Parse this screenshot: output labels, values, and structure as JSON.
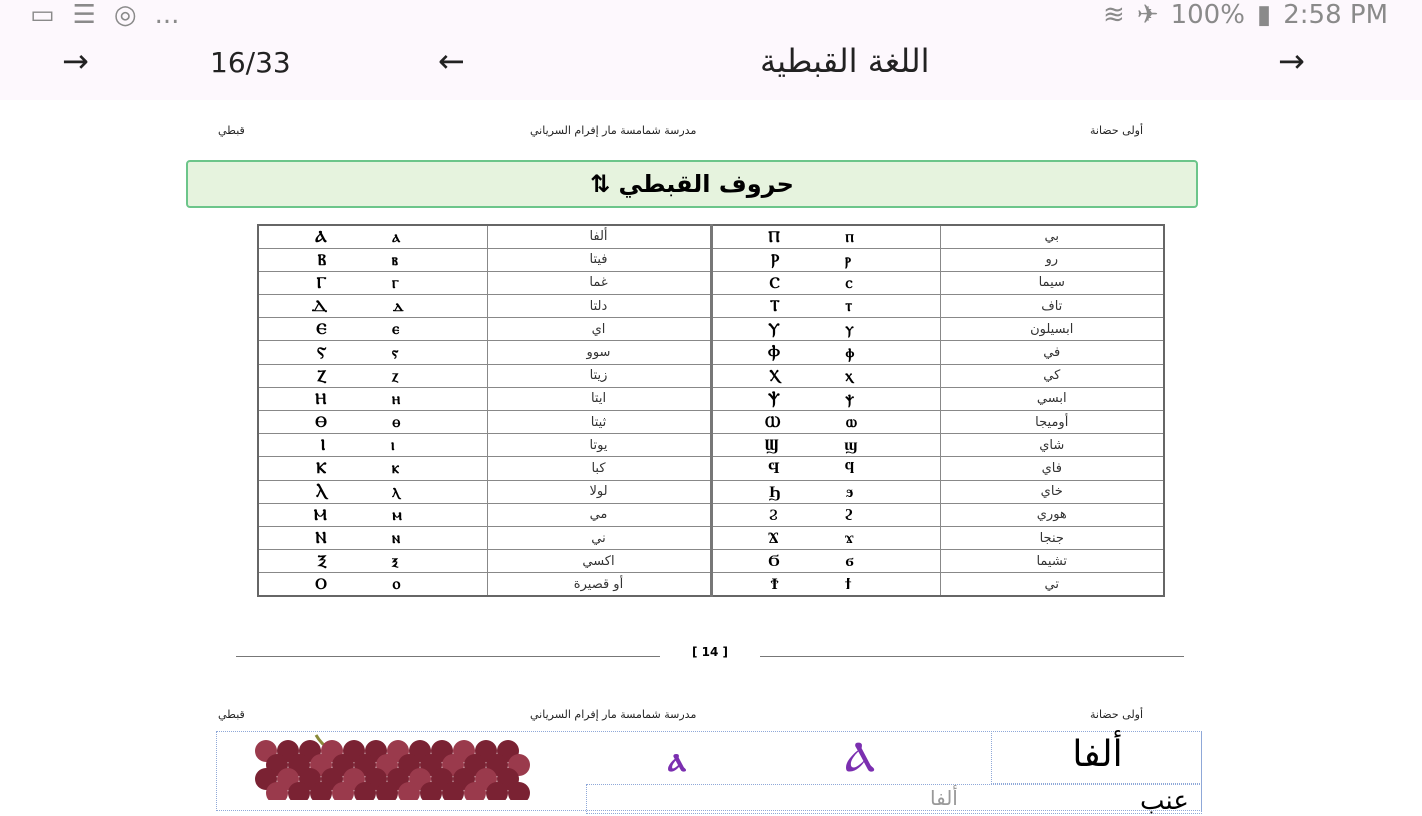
{
  "status_bar": {
    "left_icons": [
      "image-icon",
      "list-icon",
      "sync-icon",
      "more-dots-icon"
    ],
    "more": "...",
    "battery": "100%",
    "time": "2:58 PM"
  },
  "app_bar": {
    "title": "اللغة القبطية",
    "page_indicator": "16/33"
  },
  "page_header": {
    "right": "أولى حضانة",
    "center": "مدرسة شمامسة مار إفرام السرياني",
    "left": "قبطي"
  },
  "section_title": "حروف القبطي",
  "table": {
    "left": [
      {
        "glyphs": "Ⲁ ⲁ",
        "name": "ألفا"
      },
      {
        "glyphs": "Ⲃ ⲃ",
        "name": "فيتا"
      },
      {
        "glyphs": "Ⲅ ⲅ",
        "name": "غما"
      },
      {
        "glyphs": "Ⲇ ⲇ",
        "name": "دلتا"
      },
      {
        "glyphs": "Ⲉ ⲉ",
        "name": "اي"
      },
      {
        "glyphs": "Ⲋ ⲋ",
        "name": "سوو"
      },
      {
        "glyphs": "Ⲍ ⲍ",
        "name": "زيتا"
      },
      {
        "glyphs": "Ⲏ ⲏ",
        "name": "ايتا"
      },
      {
        "glyphs": "Ⲑ ⲑ",
        "name": "ثيتا"
      },
      {
        "glyphs": "Ⲓ ⲓ",
        "name": "يوتا"
      },
      {
        "glyphs": "Ⲕ ⲕ",
        "name": "كبا"
      },
      {
        "glyphs": "Ⲗ ⲗ",
        "name": "لولا"
      },
      {
        "glyphs": "Ⲙ ⲙ",
        "name": "مي"
      },
      {
        "glyphs": "Ⲛ ⲛ",
        "name": "ني"
      },
      {
        "glyphs": "Ⲝ ⲝ",
        "name": "اكسي"
      },
      {
        "glyphs": "Ⲟ ⲟ",
        "name": "أو قصيرة"
      }
    ],
    "right": [
      {
        "glyphs": "Ⲡ ⲡ",
        "name": "بي"
      },
      {
        "glyphs": "Ⲣ ⲣ",
        "name": "رو"
      },
      {
        "glyphs": "Ⲥ ⲥ",
        "name": "سيما"
      },
      {
        "glyphs": "Ⲧ ⲧ",
        "name": "تاف"
      },
      {
        "glyphs": "Ⲩ ⲩ",
        "name": "ابسيلون"
      },
      {
        "glyphs": "Ⲫ ⲫ",
        "name": "في"
      },
      {
        "glyphs": "Ⲭ ⲭ",
        "name": "كي"
      },
      {
        "glyphs": "Ⲯ ⲯ",
        "name": "ابسي"
      },
      {
        "glyphs": "Ⲱ ⲱ",
        "name": "أوميجا"
      },
      {
        "glyphs": "Ϣ ϣ",
        "name": "شاي"
      },
      {
        "glyphs": "Ϥ ϥ",
        "name": "فاي"
      },
      {
        "glyphs": "Ϧ ϧ",
        "name": "خاي"
      },
      {
        "glyphs": "Ϩ ϩ",
        "name": "هوري"
      },
      {
        "glyphs": "Ϫ ϫ",
        "name": "جنجا"
      },
      {
        "glyphs": "Ϭ ϭ",
        "name": "تشيما"
      },
      {
        "glyphs": "Ϯ ϯ",
        "name": "تي"
      }
    ]
  },
  "page_number": "14",
  "next_page": {
    "letter_name": "ألفا",
    "capital": "Ⲁ",
    "small": "ⲁ",
    "word": "عنب",
    "word_partial": "ألفا",
    "letter_color": "#7b2fb0"
  }
}
